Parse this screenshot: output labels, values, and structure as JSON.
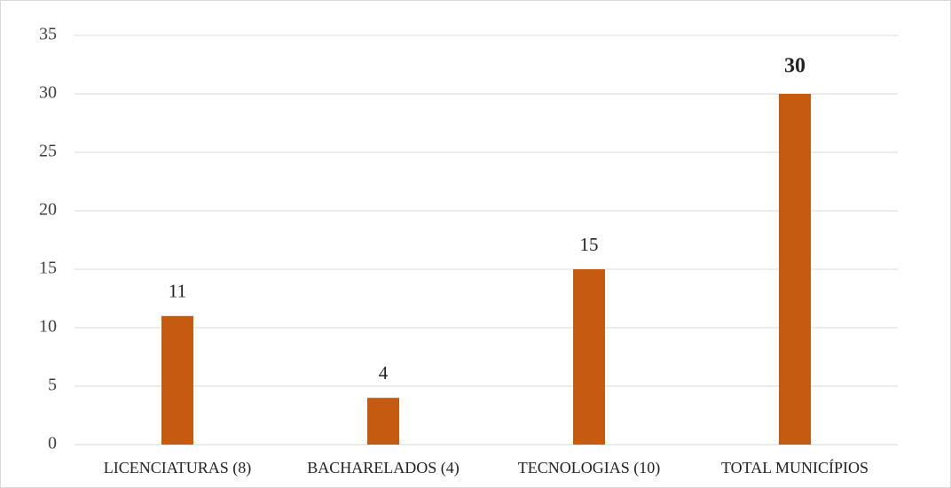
{
  "chart_data": {
    "type": "bar",
    "categories": [
      "LICENCIATURAS (8)",
      "BACHARELADOS (4)",
      "TECNOLOGIAS (10)",
      "TOTAL MUNICÍPIOS"
    ],
    "values": [
      11,
      4,
      15,
      30
    ],
    "value_label_bold": [
      false,
      false,
      false,
      true
    ],
    "color": "#c55a11",
    "ylim": [
      0,
      35
    ],
    "yticks": [
      0,
      5,
      10,
      15,
      20,
      25,
      30,
      35
    ],
    "grid": true
  }
}
